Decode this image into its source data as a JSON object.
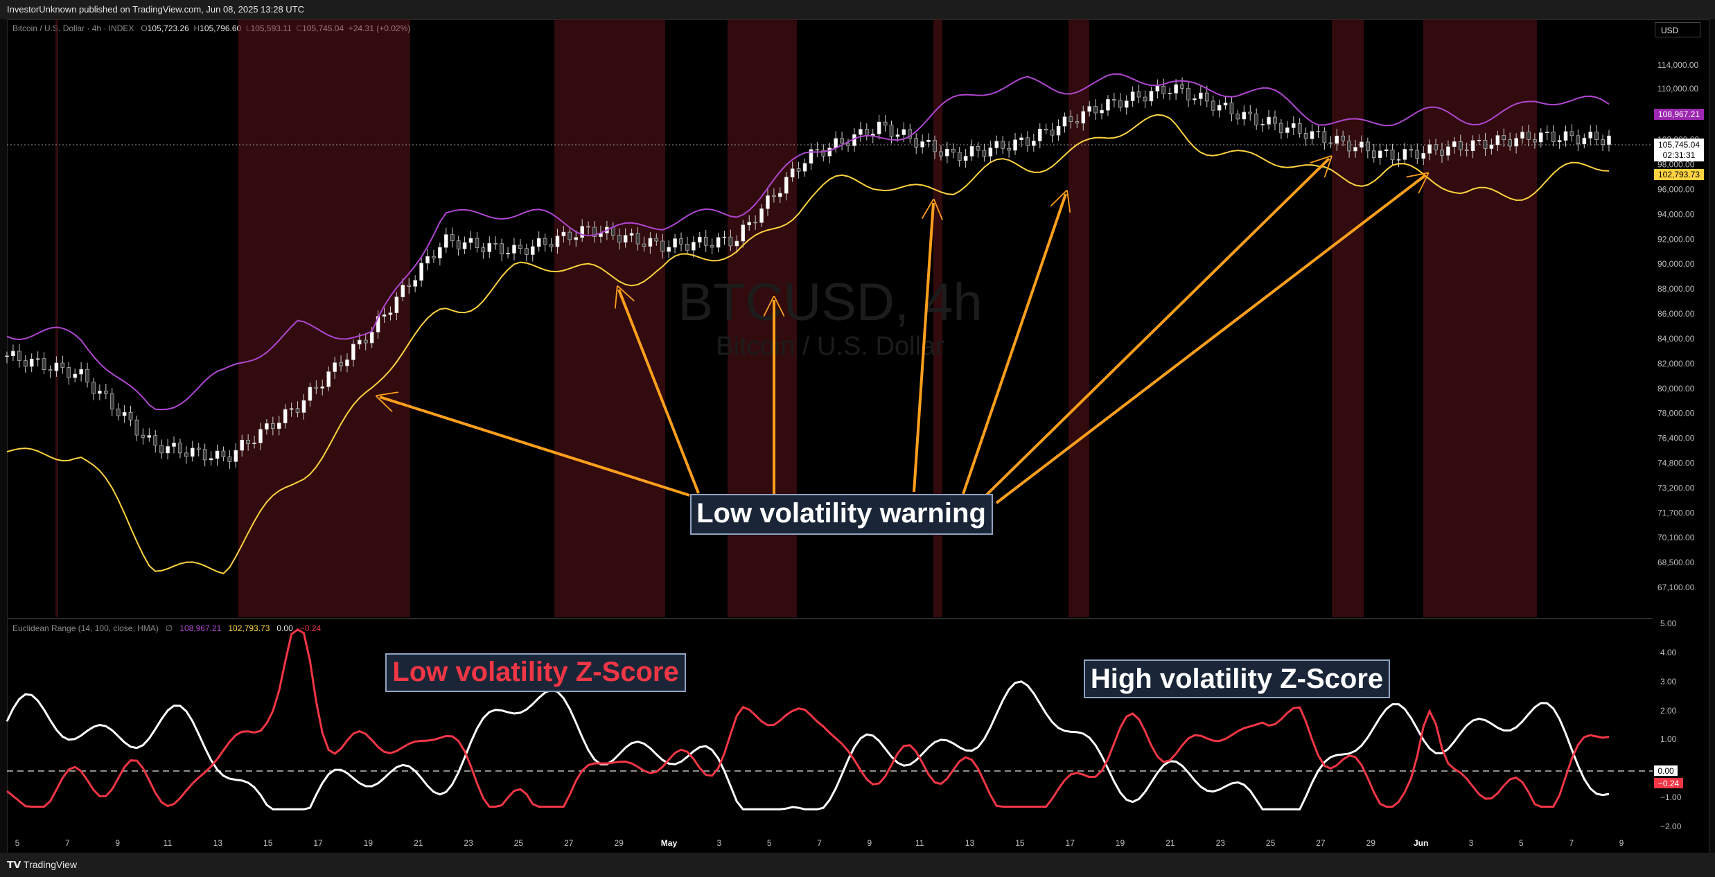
{
  "header": {
    "publisher_line": "InvestorUnknown published on TradingView.com, Jun 08, 2025 13:28 UTC"
  },
  "footer": {
    "brand": "TradingView"
  },
  "currency_button": "USD",
  "main_legend": {
    "symbol": "Bitcoin / U.S. Dollar · 4h · INDEX",
    "open_label": "O",
    "open": "105,723.26",
    "high_label": "H",
    "high": "105,796.60",
    "low_label": "L",
    "low": "105,593.11",
    "close_label": "C",
    "close": "105,745.04",
    "change": "+24.31 (+0.02%)"
  },
  "watermark": {
    "ticker": "BTCUSD, 4h",
    "name": "Bitcoin / U.S. Dollar"
  },
  "price_axis": {
    "ticks": [
      "114,000.00",
      "110,000.00",
      "106,000.00",
      "102,000.00",
      "98,000.00",
      "96,000.00",
      "94,000.00",
      "92,000.00",
      "90,000.00",
      "88,000.00",
      "86,000.00",
      "84,000.00",
      "82,000.00",
      "80,000.00",
      "78,000.00",
      "76,400.00",
      "74,800.00",
      "73,200.00",
      "71,700.00",
      "70,100.00",
      "68,500.00",
      "67,100.00"
    ],
    "upper_band_label": "108,967.21",
    "last_price_label": "105,745.04",
    "countdown_label": "02:31:31",
    "lower_band_label": "102,793.73"
  },
  "indicator_legend": {
    "name": "Euclidean Range (14, 100, close, HMA)",
    "eye_icon": "∅",
    "upper": "108,967.21",
    "lower": "102,793.73",
    "zero": "0.00",
    "z": "−0.24"
  },
  "indicator_axis": {
    "ticks": [
      "5.00",
      "4.00",
      "3.00",
      "2.00",
      "1.00",
      "−1.00",
      "−2.00"
    ],
    "zero_label": "0.00",
    "z_label": "−0.24"
  },
  "time_axis": [
    "5",
    "7",
    "9",
    "11",
    "13",
    "15",
    "17",
    "19",
    "21",
    "23",
    "25",
    "27",
    "29",
    "May",
    "3",
    "5",
    "7",
    "9",
    "11",
    "13",
    "15",
    "17",
    "19",
    "21",
    "23",
    "25",
    "27",
    "29",
    "Jun",
    "3",
    "5",
    "7",
    "9"
  ],
  "annotations": {
    "low_warning": "Low volatility warning",
    "low_z": "Low volatility Z-Score",
    "high_z": "High volatility Z-Score"
  },
  "colors": {
    "upper_band": "#b046d1",
    "lower_band": "#ffd23f",
    "arrow": "#ff9f1c",
    "low_z": "#f23645",
    "high_z": "#ffffff",
    "shade": "#5a1418"
  },
  "chart_data": {
    "type": "line",
    "title": "",
    "ylabel": "",
    "xlabel": "",
    "ylim": [
      67100,
      116000
    ],
    "scale": "log",
    "series": [
      {
        "values": [
          86000,
          84500,
          79000,
          78000,
          82000,
          88000,
          96000,
          95000,
          97000,
          95500,
          96000,
          104000,
          107000,
          104000,
          105500,
          109000,
          111000,
          108000,
          106000,
          104000,
          105000,
          106000,
          105745
        ]
      },
      {
        "values": [
          88500,
          87000,
          82000,
          84000,
          89000,
          87000,
          99000,
          98000,
          97500,
          97000,
          99000,
          104000,
          106000,
          109000,
          112000,
          111000,
          112000,
          110500,
          108000,
          107500,
          108000,
          109500,
          108967
        ]
      },
      {
        "values": [
          79000,
          78000,
          71000,
          70000,
          77000,
          83000,
          90000,
          93000,
          93500,
          93000,
          95000,
          100000,
          101500,
          101000,
          103000,
          106000,
          107000,
          104000,
          102000,
          103000,
          100000,
          101500,
          102794
        ]
      }
    ]
  }
}
